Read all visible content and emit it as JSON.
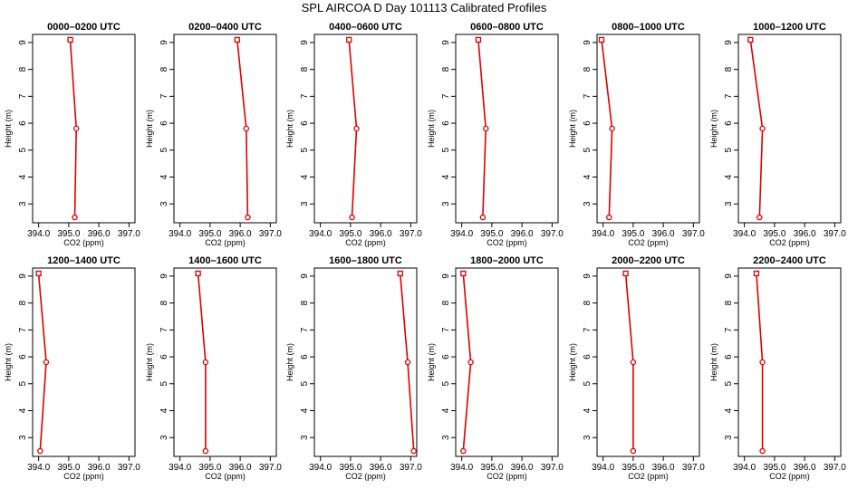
{
  "title": "SPL AIRCOA D  Day 101113  Calibrated Profiles",
  "colors": {
    "line": "#dd0000",
    "frame": "#000000"
  },
  "chart_data": {
    "type": "line",
    "xlabel": "CO2 (ppm)",
    "ylabel": "Height (m)",
    "xlim": [
      393.8,
      397.2
    ],
    "ylim": [
      2.3,
      9.3
    ],
    "xticks": [
      394,
      395,
      396,
      397
    ],
    "xtick_labels": [
      "394.0",
      "395.0",
      "396.0",
      "397.0"
    ],
    "yticks": [
      3,
      4,
      5,
      6,
      7,
      8,
      9
    ],
    "ytick_labels": [
      "3",
      "4",
      "5",
      "6",
      "7",
      "8",
      "9"
    ],
    "heights": [
      9.1,
      5.8,
      2.5
    ],
    "grid": false,
    "panels": [
      {
        "title": "0000–0200 UTC",
        "co2": [
          395.05,
          395.25,
          395.2
        ]
      },
      {
        "title": "0200–0400 UTC",
        "co2": [
          395.9,
          396.2,
          396.25
        ]
      },
      {
        "title": "0400–0600 UTC",
        "co2": [
          394.95,
          395.2,
          395.05
        ]
      },
      {
        "title": "0600–0800 UTC",
        "co2": [
          394.55,
          394.8,
          394.7
        ]
      },
      {
        "title": "0800–1000 UTC",
        "co2": [
          393.95,
          394.3,
          394.2
        ]
      },
      {
        "title": "1000–1200 UTC",
        "co2": [
          394.2,
          394.6,
          394.5
        ]
      },
      {
        "title": "1200–1400 UTC",
        "co2": [
          394.0,
          394.25,
          394.05
        ]
      },
      {
        "title": "1400–1600 UTC",
        "co2": [
          394.6,
          394.85,
          394.85
        ]
      },
      {
        "title": "1600–1800 UTC",
        "co2": [
          396.65,
          396.9,
          397.1
        ]
      },
      {
        "title": "1800–2000 UTC",
        "co2": [
          394.05,
          394.3,
          394.05
        ]
      },
      {
        "title": "2000–2200 UTC",
        "co2": [
          394.75,
          395.0,
          395.0
        ]
      },
      {
        "title": "2200–2400 UTC",
        "co2": [
          394.4,
          394.6,
          394.6
        ]
      }
    ]
  }
}
